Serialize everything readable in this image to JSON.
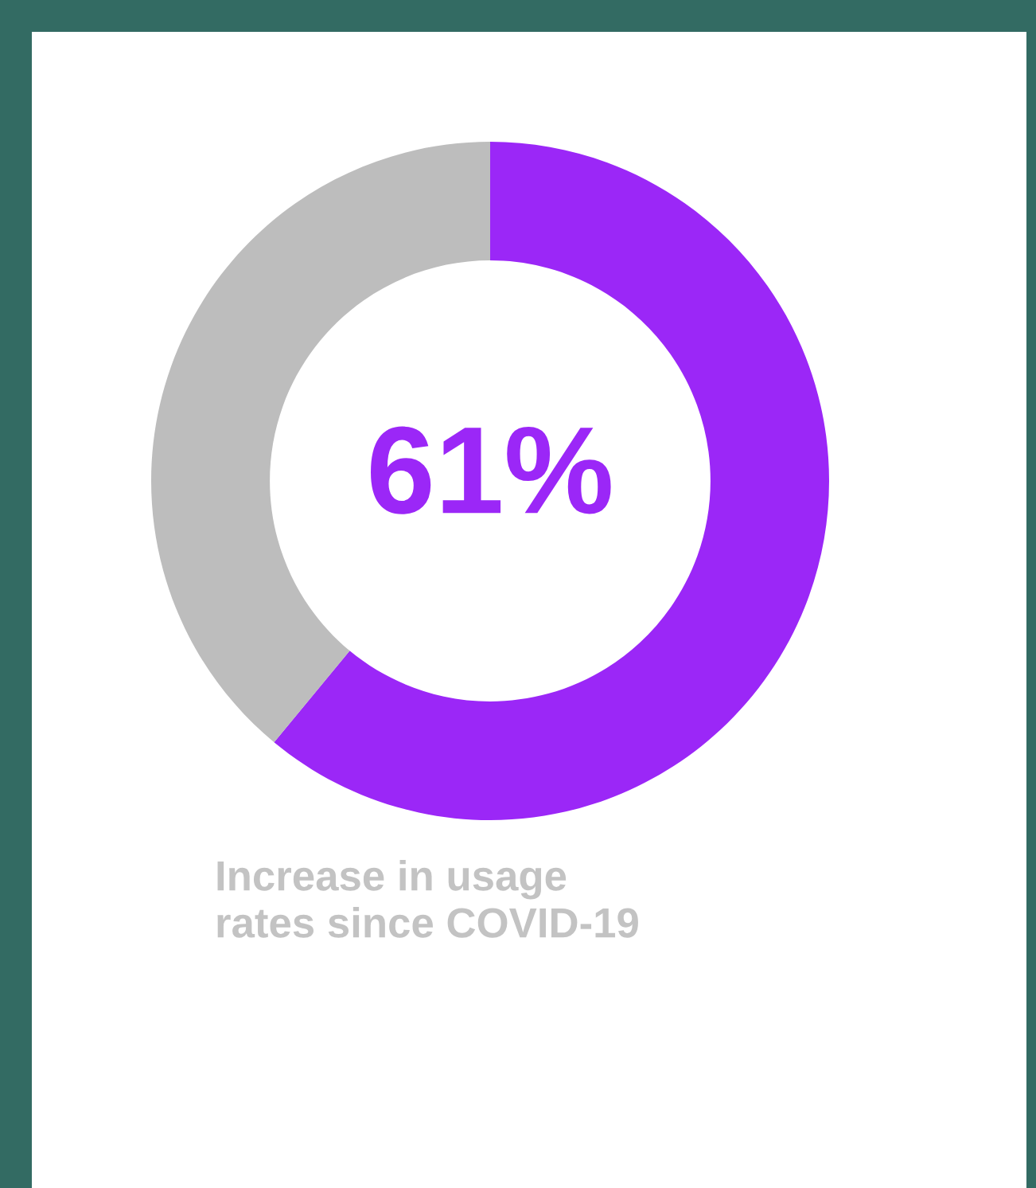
{
  "chart_data": {
    "type": "donut",
    "categories": [
      null,
      null
    ],
    "values": [
      61,
      39
    ],
    "colors": [
      "#9b27f7",
      "#bdbdbd"
    ],
    "value_labels": [
      "61%",
      null
    ],
    "annotations": [
      "Increase in usage\nrates since COVID-19"
    ]
  }
}
